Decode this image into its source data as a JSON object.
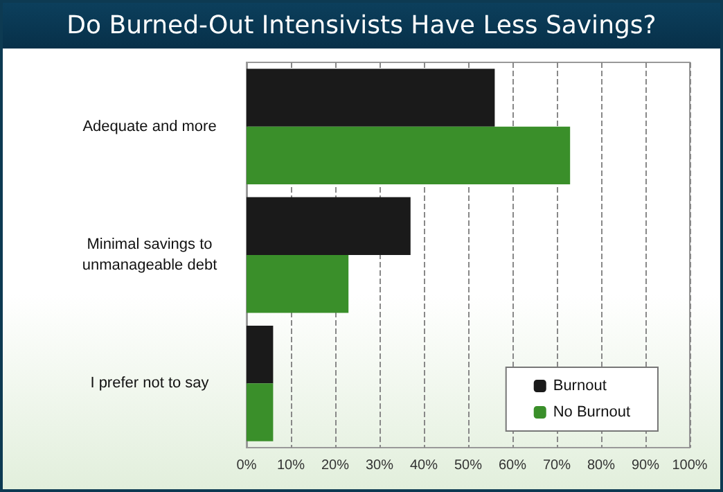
{
  "chart_data": {
    "type": "bar",
    "orientation": "horizontal",
    "title": "Do Burned-Out Intensivists Have Less Savings?",
    "categories": [
      "Adequate and more",
      "Minimal savings to\nunmanageable debt",
      "I prefer not to say"
    ],
    "series": [
      {
        "name": "Burnout",
        "color": "#1a1a1a",
        "values": [
          56,
          37,
          6
        ]
      },
      {
        "name": "No Burnout",
        "color": "#3a8f2a",
        "values": [
          73,
          23,
          6
        ]
      }
    ],
    "xlim": [
      0,
      100
    ],
    "xticks": [
      {
        "value": 0,
        "label": "0%"
      },
      {
        "value": 10,
        "label": "10%"
      },
      {
        "value": 20,
        "label": "20%"
      },
      {
        "value": 30,
        "label": "30%"
      },
      {
        "value": 40,
        "label": "40%"
      },
      {
        "value": 50,
        "label": "50%"
      },
      {
        "value": 60,
        "label": "60%"
      },
      {
        "value": 70,
        "label": "70%"
      },
      {
        "value": 80,
        "label": "80%"
      },
      {
        "value": 90,
        "label": "90%"
      },
      {
        "value": 100,
        "label": "100%"
      }
    ],
    "grid": "x",
    "legend": "bottom right"
  }
}
